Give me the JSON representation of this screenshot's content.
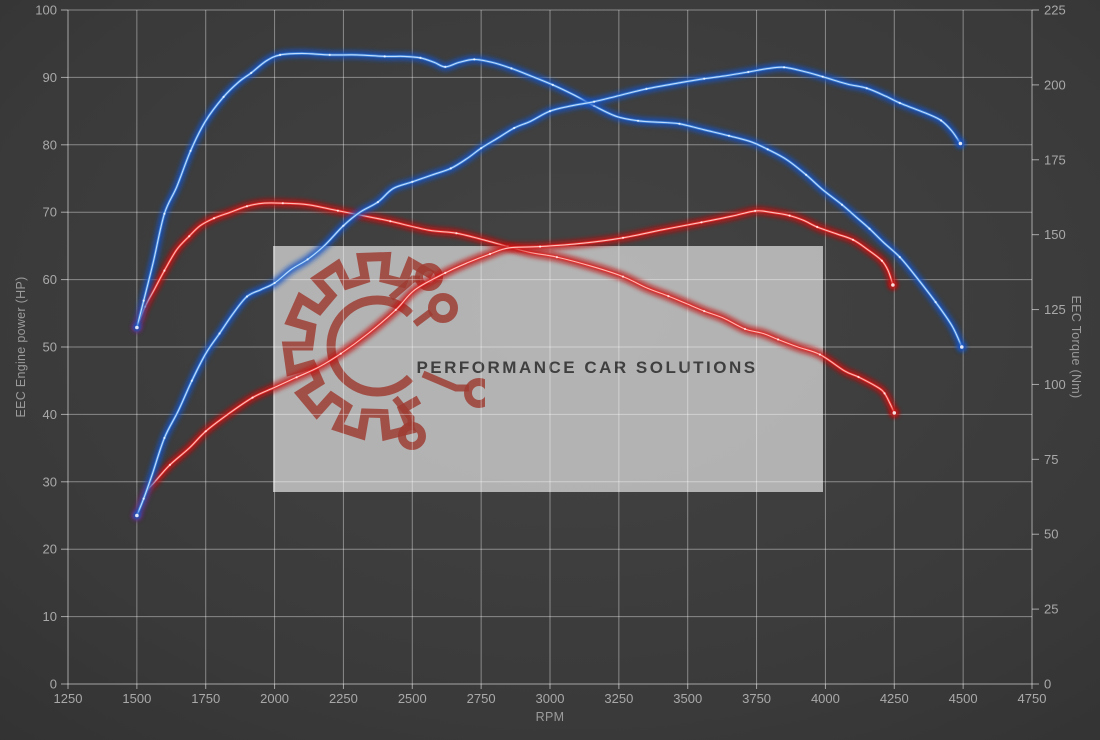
{
  "watermark": {
    "text": "PERFORMANCE CAR SOLUTIONS",
    "box_color": "rgba(228,228,228,0.70)",
    "text_color": "#3f3f3f",
    "logo_color": "#9e3b31"
  },
  "colors": {
    "background_center": "#444444",
    "background_edge": "#2a2a2a",
    "grid": "rgba(255,255,255,0.40)",
    "grid_strong": "rgba(255,255,255,0.55)",
    "tick_label": "#a9a9a9",
    "axis_title": "#9b9b9b",
    "marker": "#ffffff"
  },
  "chart_data": {
    "type": "line",
    "title": "",
    "grid": true,
    "legend": "none",
    "x": {
      "label": "RPM",
      "min": 1250,
      "max": 4750,
      "ticks": [
        1250,
        1500,
        1750,
        2000,
        2250,
        2500,
        2750,
        3000,
        3250,
        3500,
        3750,
        4000,
        4250,
        4500,
        4750
      ]
    },
    "y_left": {
      "label": "EEC Engine power (HP)",
      "min": 0,
      "max": 100,
      "ticks": [
        0,
        10,
        20,
        30,
        40,
        50,
        60,
        70,
        80,
        90,
        100
      ]
    },
    "y_right": {
      "label": "EEC Torque (Nm)",
      "min": 0,
      "max": 225,
      "ticks": [
        0,
        25,
        50,
        75,
        100,
        125,
        150,
        175,
        200,
        225
      ]
    },
    "series": [
      {
        "name": "red-torque-nm",
        "axis": "right",
        "color": "#e62e2e",
        "glow": "#c40f0f",
        "core": "#ffc9c0",
        "points": [
          [
            1500,
            119
          ],
          [
            1530,
            126
          ],
          [
            1565,
            132
          ],
          [
            1600,
            138
          ],
          [
            1645,
            145
          ],
          [
            1690,
            149.5
          ],
          [
            1730,
            153
          ],
          [
            1780,
            155.5
          ],
          [
            1840,
            157.5
          ],
          [
            1900,
            159.5
          ],
          [
            1960,
            160.5
          ],
          [
            2030,
            160.5
          ],
          [
            2120,
            160
          ],
          [
            2230,
            158
          ],
          [
            2340,
            156
          ],
          [
            2420,
            154.5
          ],
          [
            2560,
            151.5
          ],
          [
            2660,
            150.5
          ],
          [
            2770,
            148
          ],
          [
            2847,
            146
          ],
          [
            2930,
            144
          ],
          [
            3025,
            142.5
          ],
          [
            3156,
            139.3
          ],
          [
            3265,
            136
          ],
          [
            3352,
            132.2
          ],
          [
            3430,
            129.5
          ],
          [
            3490,
            127.2
          ],
          [
            3560,
            124.5
          ],
          [
            3628,
            122.2
          ],
          [
            3708,
            118.5
          ],
          [
            3774,
            117
          ],
          [
            3828,
            115
          ],
          [
            3900,
            112.5
          ],
          [
            3980,
            110
          ],
          [
            4070,
            104.5
          ],
          [
            4120,
            102.5
          ],
          [
            4190,
            99
          ],
          [
            4215,
            97
          ],
          [
            4235,
            93.5
          ],
          [
            4250,
            90.5
          ]
        ]
      },
      {
        "name": "red-power-hp",
        "axis": "left",
        "color": "#e62e2e",
        "glow": "#c40f0f",
        "core": "#ffd3cb",
        "points": [
          [
            1500,
            25
          ],
          [
            1535,
            28.5
          ],
          [
            1565,
            30
          ],
          [
            1620,
            32.5
          ],
          [
            1690,
            35
          ],
          [
            1750,
            37.5
          ],
          [
            1830,
            40
          ],
          [
            1920,
            42.5
          ],
          [
            2000,
            44
          ],
          [
            2080,
            45.5
          ],
          [
            2160,
            47
          ],
          [
            2240,
            49
          ],
          [
            2340,
            52
          ],
          [
            2440,
            55.5
          ],
          [
            2510,
            58.5
          ],
          [
            2620,
            61
          ],
          [
            2700,
            62.5
          ],
          [
            2782,
            63.8
          ],
          [
            2850,
            64.7
          ],
          [
            2964,
            64.9
          ],
          [
            3120,
            65.4
          ],
          [
            3265,
            66.2
          ],
          [
            3410,
            67.4
          ],
          [
            3550,
            68.5
          ],
          [
            3660,
            69.4
          ],
          [
            3745,
            70.2
          ],
          [
            3800,
            70
          ],
          [
            3870,
            69.5
          ],
          [
            3920,
            68.8
          ],
          [
            3970,
            67.8
          ],
          [
            4040,
            66.8
          ],
          [
            4100,
            65.9
          ],
          [
            4155,
            64.4
          ],
          [
            4205,
            62.8
          ],
          [
            4228,
            61.3
          ],
          [
            4245,
            59.2
          ]
        ]
      },
      {
        "name": "blue-torque-nm",
        "axis": "right",
        "color": "#3d85dc",
        "glow": "#1453c4",
        "core": "#cfe6ff",
        "points": [
          [
            1500,
            119
          ],
          [
            1525,
            128
          ],
          [
            1560,
            141
          ],
          [
            1600,
            157
          ],
          [
            1645,
            166
          ],
          [
            1695,
            178
          ],
          [
            1750,
            188
          ],
          [
            1815,
            196
          ],
          [
            1870,
            201
          ],
          [
            1915,
            204
          ],
          [
            1970,
            208
          ],
          [
            2020,
            210
          ],
          [
            2100,
            210.5
          ],
          [
            2200,
            210
          ],
          [
            2300,
            210
          ],
          [
            2400,
            209.5
          ],
          [
            2470,
            209.5
          ],
          [
            2530,
            209
          ],
          [
            2580,
            207.5
          ],
          [
            2620,
            206
          ],
          [
            2670,
            207.5
          ],
          [
            2725,
            208.5
          ],
          [
            2790,
            207.5
          ],
          [
            2860,
            205.5
          ],
          [
            2930,
            203
          ],
          [
            3010,
            200
          ],
          [
            3090,
            196.5
          ],
          [
            3160,
            193
          ],
          [
            3240,
            189.5
          ],
          [
            3320,
            188
          ],
          [
            3400,
            187.5
          ],
          [
            3470,
            187
          ],
          [
            3560,
            185
          ],
          [
            3650,
            183
          ],
          [
            3730,
            181
          ],
          [
            3790,
            178.5
          ],
          [
            3860,
            175
          ],
          [
            3930,
            170
          ],
          [
            3990,
            165
          ],
          [
            4060,
            160
          ],
          [
            4110,
            156
          ],
          [
            4160,
            152
          ],
          [
            4210,
            147.5
          ],
          [
            4270,
            142.5
          ],
          [
            4320,
            137
          ],
          [
            4400,
            127.5
          ],
          [
            4460,
            119.5
          ],
          [
            4495,
            112.5
          ]
        ]
      },
      {
        "name": "blue-power-hp",
        "axis": "left",
        "color": "#3d85dc",
        "glow": "#1453c4",
        "core": "#cfe6ff",
        "points": [
          [
            1500,
            25
          ],
          [
            1525,
            27.5
          ],
          [
            1555,
            31
          ],
          [
            1600,
            36.5
          ],
          [
            1650,
            40.5
          ],
          [
            1700,
            45
          ],
          [
            1750,
            49
          ],
          [
            1800,
            52
          ],
          [
            1850,
            55
          ],
          [
            1900,
            57.5
          ],
          [
            1950,
            58.5
          ],
          [
            2000,
            59.5
          ],
          [
            2060,
            61.5
          ],
          [
            2120,
            63
          ],
          [
            2180,
            65
          ],
          [
            2250,
            68
          ],
          [
            2310,
            70
          ],
          [
            2375,
            71.5
          ],
          [
            2430,
            73.5
          ],
          [
            2500,
            74.5
          ],
          [
            2570,
            75.5
          ],
          [
            2640,
            76.5
          ],
          [
            2700,
            78
          ],
          [
            2750,
            79.5
          ],
          [
            2810,
            81
          ],
          [
            2870,
            82.5
          ],
          [
            2930,
            83.5
          ],
          [
            3000,
            85
          ],
          [
            3080,
            85.8
          ],
          [
            3160,
            86.4
          ],
          [
            3250,
            87.3
          ],
          [
            3350,
            88.3
          ],
          [
            3470,
            89.2
          ],
          [
            3560,
            89.8
          ],
          [
            3630,
            90.2
          ],
          [
            3720,
            90.8
          ],
          [
            3790,
            91.3
          ],
          [
            3850,
            91.5
          ],
          [
            3930,
            90.8
          ],
          [
            3990,
            90.1
          ],
          [
            4080,
            89
          ],
          [
            4150,
            88.4
          ],
          [
            4220,
            87.2
          ],
          [
            4270,
            86.2
          ],
          [
            4370,
            84.6
          ],
          [
            4420,
            83.6
          ],
          [
            4460,
            82
          ],
          [
            4490,
            80.2
          ]
        ]
      }
    ]
  }
}
